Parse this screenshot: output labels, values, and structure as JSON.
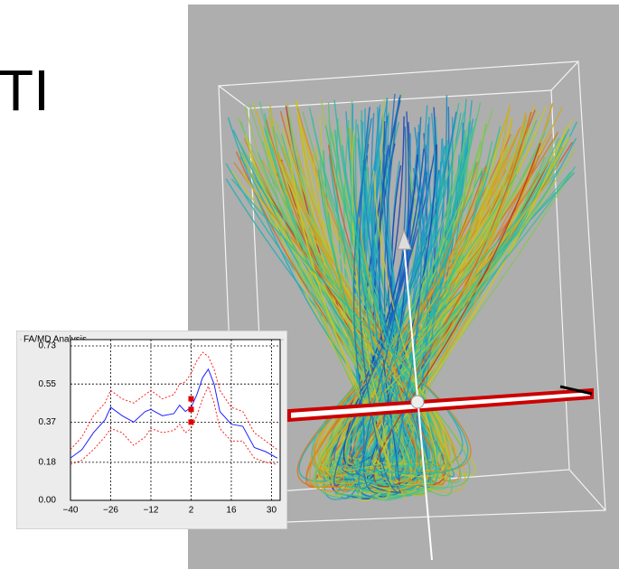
{
  "heading": "TI",
  "chart_data": {
    "type": "line",
    "title": "FA/MD Analysis",
    "x": [
      -40,
      -36,
      -32,
      -28,
      -26,
      -22,
      -18,
      -14,
      -12,
      -8,
      -4,
      -2,
      0,
      2,
      4,
      6,
      8,
      10,
      12,
      16,
      20,
      24,
      28,
      32
    ],
    "series": [
      {
        "color": "#2020ff",
        "style": "solid",
        "values": [
          0.2,
          0.24,
          0.32,
          0.38,
          0.44,
          0.4,
          0.37,
          0.42,
          0.43,
          0.4,
          0.41,
          0.45,
          0.42,
          0.44,
          0.5,
          0.58,
          0.62,
          0.55,
          0.42,
          0.36,
          0.35,
          0.25,
          0.23,
          0.2
        ]
      },
      {
        "color": "#ff2020",
        "style": "dotted",
        "values": [
          0.24,
          0.3,
          0.4,
          0.46,
          0.52,
          0.48,
          0.46,
          0.5,
          0.52,
          0.48,
          0.5,
          0.55,
          0.56,
          0.6,
          0.66,
          0.7,
          0.68,
          0.62,
          0.52,
          0.44,
          0.42,
          0.32,
          0.28,
          0.24
        ]
      },
      {
        "color": "#ff2020",
        "style": "dotted",
        "values": [
          0.17,
          0.19,
          0.24,
          0.3,
          0.34,
          0.32,
          0.26,
          0.3,
          0.34,
          0.32,
          0.33,
          0.36,
          0.32,
          0.34,
          0.4,
          0.48,
          0.54,
          0.46,
          0.34,
          0.28,
          0.28,
          0.2,
          0.18,
          0.17
        ]
      }
    ],
    "markers": {
      "color": "#e00000",
      "x": [
        2,
        2,
        2
      ],
      "values": [
        0.48,
        0.43,
        0.37
      ]
    },
    "xlim": [
      -40,
      33
    ],
    "ylim": [
      0,
      0.76
    ],
    "xticks": [
      {
        "value": -40,
        "label": "−40"
      },
      {
        "value": -26,
        "label": "−26"
      },
      {
        "value": -12,
        "label": "−12"
      },
      2,
      16,
      30
    ],
    "yticks": [
      {
        "value": 0,
        "label": "0.00"
      },
      0.18,
      0.37,
      0.55,
      0.73
    ],
    "grid": true
  }
}
